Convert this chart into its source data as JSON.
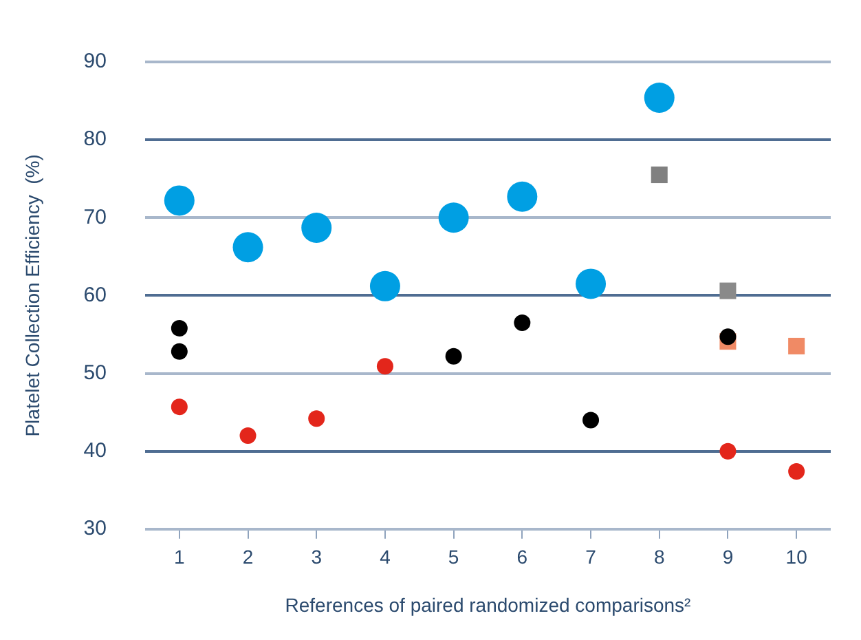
{
  "chart_data": {
    "type": "scatter",
    "ylabel": "Platelet Collection Efficiency  (%)",
    "xlabel": "References of paired randomized comparisons²",
    "categories": [
      "1",
      "2",
      "3",
      "4",
      "5",
      "6",
      "7",
      "8",
      "9",
      "10"
    ],
    "ylim": [
      30,
      90
    ],
    "yticks": [
      30,
      40,
      50,
      60,
      70,
      80,
      90
    ],
    "grid": "y",
    "legend": false,
    "series": [
      {
        "color": "#009fe3",
        "marker": "circle",
        "values": [
          72.2,
          66.2,
          68.7,
          61.2,
          70.0,
          72.7,
          61.5,
          85.4,
          null,
          null
        ]
      },
      {
        "color": "#808080",
        "marker": "square",
        "values": [
          null,
          null,
          null,
          null,
          null,
          null,
          null,
          75.5,
          null,
          null
        ]
      },
      {
        "color": "#8a8a8a",
        "marker": "square",
        "values": [
          null,
          null,
          null,
          null,
          null,
          null,
          null,
          null,
          60.6,
          null
        ]
      },
      {
        "color": "#f08a65",
        "marker": "square",
        "values": [
          null,
          null,
          null,
          null,
          null,
          null,
          null,
          null,
          54.1,
          53.5
        ]
      },
      {
        "color": "#000000",
        "marker": "circle",
        "values": [
          55.8,
          null,
          null,
          null,
          null,
          56.5,
          null,
          null,
          null,
          null
        ]
      },
      {
        "color": "#000000",
        "marker": "circle",
        "values": [
          52.8,
          null,
          null,
          null,
          52.2,
          null,
          44.0,
          null,
          54.7,
          null
        ]
      },
      {
        "color": "#e3261b",
        "marker": "circle",
        "values": [
          45.7,
          null,
          null,
          null,
          null,
          null,
          null,
          null,
          null,
          null
        ]
      },
      {
        "color": "#e3261b",
        "marker": "circle",
        "values": [
          null,
          42.0,
          44.2,
          50.9,
          null,
          null,
          null,
          null,
          40.0,
          37.4
        ]
      }
    ]
  }
}
